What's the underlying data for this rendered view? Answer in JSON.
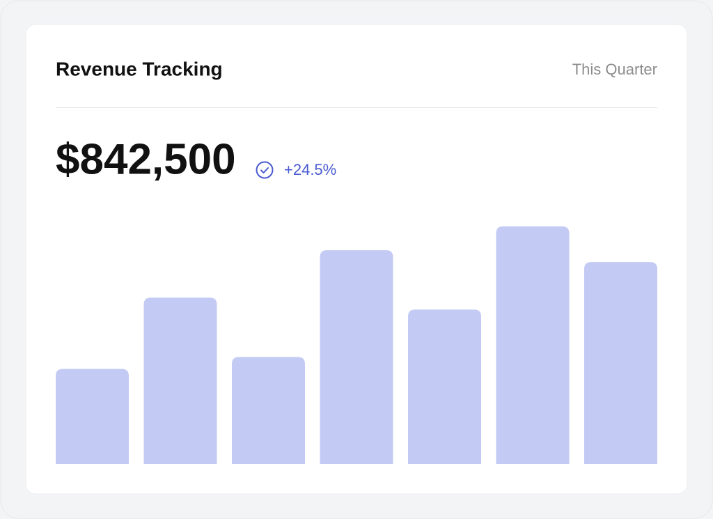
{
  "header": {
    "title": "Revenue Tracking",
    "period": "This Quarter"
  },
  "metric": {
    "value": "$842,500",
    "change": "+24.5%"
  },
  "chart_data": {
    "type": "bar",
    "values": [
      40,
      70,
      45,
      90,
      65,
      100,
      85
    ],
    "ylim": [
      0,
      100
    ],
    "color": "#c3cbf5"
  }
}
